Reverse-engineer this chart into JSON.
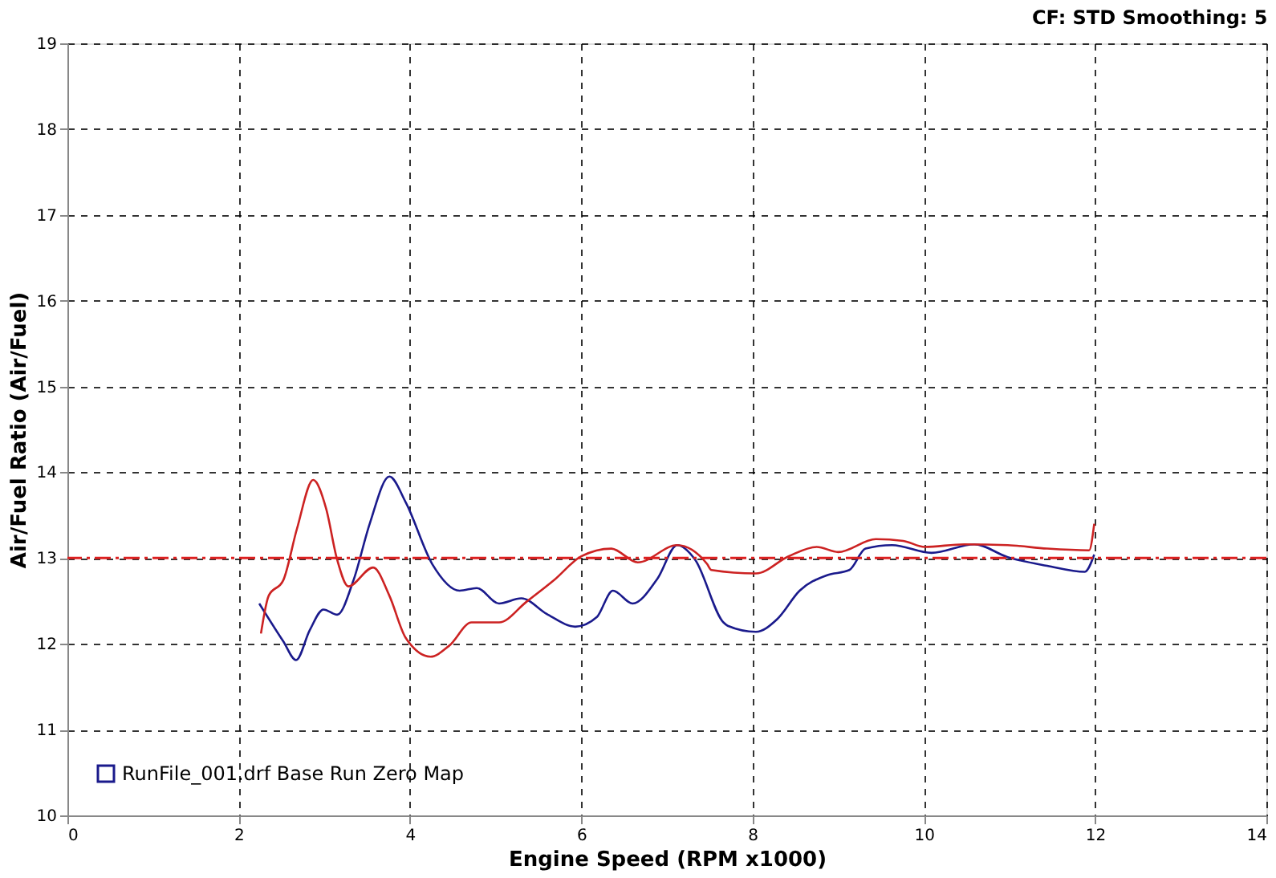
{
  "chart_data": {
    "type": "line",
    "xlabel": "Engine Speed (RPM x1000)",
    "ylabel": "Air/Fuel Ratio (Air/Fuel)",
    "annotations": [
      "CF: STD  Smoothing: 5"
    ],
    "xlim": [
      0,
      14
    ],
    "xticks": [
      0,
      2,
      4,
      6,
      8,
      10,
      12,
      14
    ],
    "ylim": [
      10,
      19
    ],
    "yticks": [
      10,
      11,
      12,
      13,
      14,
      15,
      16,
      17,
      18,
      19
    ],
    "grid": true,
    "legend": "bottom left",
    "line_style": "solid",
    "ref_lines": [
      {
        "axis": "y",
        "value": 13,
        "color": "#dd2020",
        "line_style": "dashed"
      }
    ],
    "series": [
      {
        "name": "RunFile_001.drf Base Run Zero Map",
        "color": "#1a1a8c",
        "x": [
          2.24,
          2.52,
          2.67,
          2.83,
          2.99,
          3.15,
          3.34,
          3.53,
          3.76,
          3.95,
          4.26,
          4.58,
          4.78,
          5.04,
          5.3,
          5.61,
          5.93,
          6.18,
          6.37,
          6.6,
          6.89,
          7.12,
          7.33,
          7.66,
          7.71,
          8.04,
          8.29,
          8.55,
          8.87,
          9.13,
          9.32,
          9.63,
          10.09,
          10.59,
          10.98,
          11.44,
          11.88,
          11.99
        ],
        "values": [
          12.47,
          12.03,
          11.81,
          12.16,
          12.4,
          12.34,
          12.74,
          13.4,
          13.95,
          13.65,
          12.93,
          12.62,
          12.65,
          12.47,
          12.53,
          12.34,
          12.2,
          12.31,
          12.62,
          12.47,
          12.76,
          13.15,
          12.98,
          12.25,
          12.21,
          12.14,
          12.29,
          12.62,
          12.8,
          12.86,
          13.11,
          13.15,
          13.06,
          13.16,
          13.01,
          12.91,
          12.84,
          13.04
        ]
      },
      {
        "color": "#cc2222",
        "x": [
          2.26,
          2.35,
          2.52,
          2.68,
          2.87,
          3.02,
          3.15,
          3.28,
          3.57,
          3.76,
          3.95,
          4.24,
          4.46,
          4.72,
          5.04,
          5.36,
          5.68,
          6.0,
          6.35,
          6.66,
          7.12,
          7.47,
          7.52,
          8.04,
          8.42,
          8.75,
          9.0,
          9.44,
          9.76,
          10.01,
          10.47,
          10.98,
          11.44,
          11.93,
          11.99
        ],
        "values": [
          12.12,
          12.56,
          12.74,
          13.34,
          13.91,
          13.58,
          12.98,
          12.67,
          12.89,
          12.56,
          12.07,
          11.85,
          11.98,
          12.25,
          12.25,
          12.49,
          12.74,
          13.02,
          13.11,
          12.95,
          13.15,
          12.93,
          12.86,
          12.82,
          13.02,
          13.13,
          13.07,
          13.22,
          13.2,
          13.13,
          13.16,
          13.15,
          13.11,
          13.09,
          13.4
        ]
      }
    ]
  }
}
